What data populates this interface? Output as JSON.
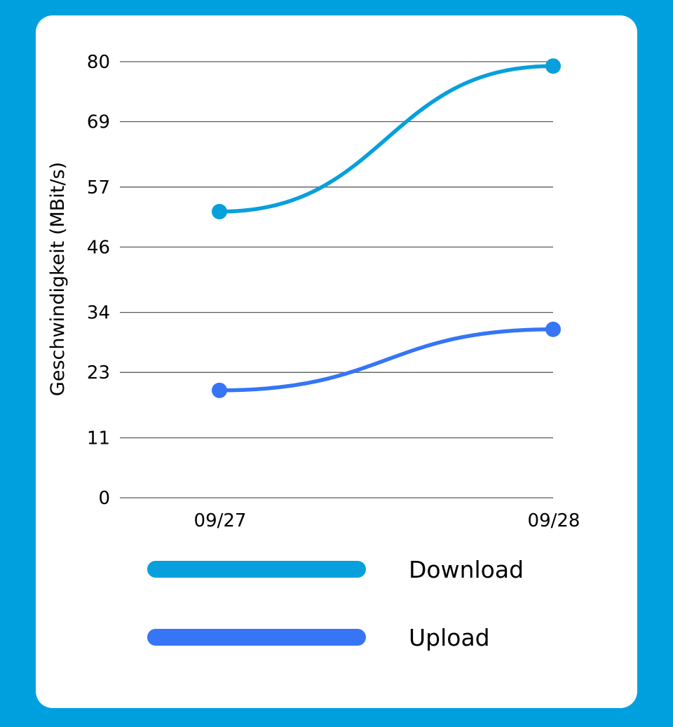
{
  "chart_data": {
    "type": "line",
    "ylabel": "Geschwindigkeit (MBit/s)",
    "categories": [
      "09/27",
      "09/28"
    ],
    "yticks": [
      0,
      11,
      23,
      34,
      46,
      57,
      69,
      80
    ],
    "ylim": [
      0,
      80
    ],
    "grid": true,
    "legend_position": "bottom",
    "series": [
      {
        "name": "Download",
        "color": "#079fdc",
        "values": [
          52.5,
          79.2
        ]
      },
      {
        "name": "Upload",
        "color": "#3575f6",
        "values": [
          19.7,
          30.9
        ]
      }
    ]
  },
  "colors": {
    "background": "#00a0df",
    "card": "#ffffff",
    "grid": "#5a5a5a"
  }
}
